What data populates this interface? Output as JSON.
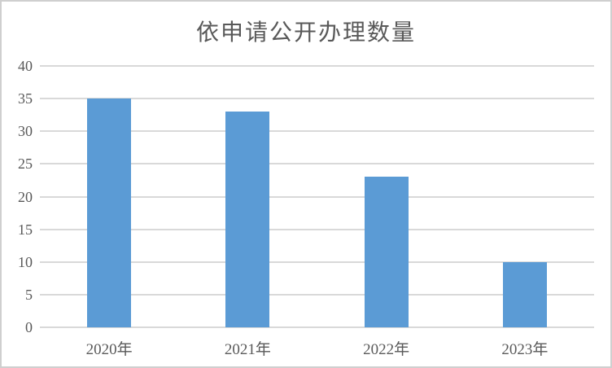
{
  "chart_data": {
    "type": "bar",
    "title": "依申请公开办理数量",
    "categories": [
      "2020年",
      "2021年",
      "2022年",
      "2023年"
    ],
    "values": [
      35,
      33,
      23,
      10
    ],
    "xlabel": "",
    "ylabel": "",
    "ylim": [
      0,
      40
    ],
    "yticks": [
      0,
      5,
      10,
      15,
      20,
      25,
      30,
      35,
      40
    ],
    "grid": "horizontal",
    "legend_position": "none",
    "bar_color": "#5B9BD5",
    "gridline_color": "#D9D9D9",
    "text_color": "#595959"
  }
}
